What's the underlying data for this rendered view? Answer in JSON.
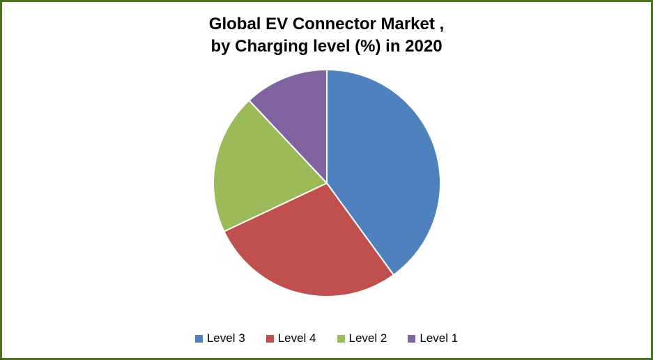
{
  "page": {
    "frame_border_color": "#4a6e22",
    "background_color": "#ffffff"
  },
  "chart_data": {
    "type": "pie",
    "title": "Global EV Connector Market , by Charging level (%) in 2020",
    "title_lines": [
      "Global EV Connector Market ,",
      "by Charging level (%) in 2020"
    ],
    "legend_position": "bottom",
    "start_angle_deg": 0,
    "direction": "clockwise",
    "slices": [
      {
        "label": "Level 3",
        "value": 40,
        "color": "#4e81bd"
      },
      {
        "label": "Level 4",
        "value": 28,
        "color": "#c0504d"
      },
      {
        "label": "Level 2",
        "value": 20,
        "color": "#9bbb59"
      },
      {
        "label": "Level 1",
        "value": 12,
        "color": "#8064a2"
      }
    ],
    "slice_separator_color": "#ffffff"
  }
}
